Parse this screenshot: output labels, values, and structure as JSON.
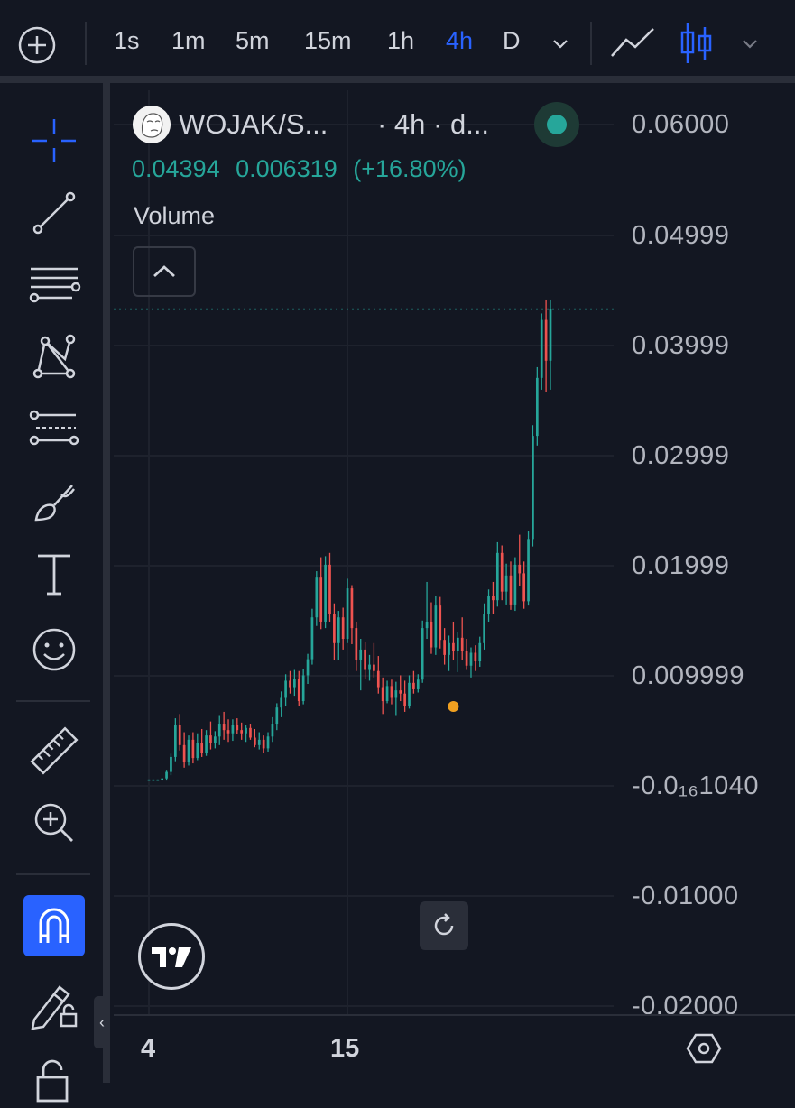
{
  "toolbar": {
    "timeframes": [
      "1s",
      "1m",
      "5m",
      "15m",
      "1h",
      "4h",
      "D"
    ],
    "active_timeframe": "4h"
  },
  "legend": {
    "symbol": "WOJAK/S...",
    "interval_info": "· 4h · d...",
    "last_price": "0.04394",
    "change_abs": "0.006319",
    "change_pct": "(+16.80%)",
    "volume_label": "Volume"
  },
  "price_axis": {
    "labels": [
      "0.06000",
      "0.04999",
      "0.03999",
      "0.02999",
      "0.01999",
      "0.009999",
      "-0.0₁₆1040",
      "-0.01000",
      "-0.02000"
    ]
  },
  "time_axis": {
    "labels": [
      "4",
      "15"
    ]
  },
  "colors": {
    "background": "#131722",
    "up": "#26a69a",
    "down": "#ef5350",
    "accent": "#2962ff",
    "grid": "#1e222d"
  },
  "chart_data": {
    "type": "candlestick",
    "interval": "4h",
    "ylim": [
      -0.021,
      0.0611
    ],
    "ohlc": [
      [
        0.0001,
        0.0001,
        0.0,
        0.0001
      ],
      [
        0.0001,
        0.0001,
        0.0,
        0.0001
      ],
      [
        0.0001,
        0.0001,
        0.0,
        0.0001
      ],
      [
        0.0001,
        0.0002,
        0.0,
        0.0002
      ],
      [
        0.0002,
        0.001,
        0.0,
        0.0008
      ],
      [
        0.0008,
        0.0025,
        0.0005,
        0.0022
      ],
      [
        0.0022,
        0.0058,
        0.0018,
        0.0052
      ],
      [
        0.0052,
        0.0062,
        0.0028,
        0.0033
      ],
      [
        0.0033,
        0.0045,
        0.0012,
        0.0017
      ],
      [
        0.0017,
        0.0042,
        0.0014,
        0.0038
      ],
      [
        0.0038,
        0.0045,
        0.0016,
        0.0021
      ],
      [
        0.0021,
        0.0044,
        0.0019,
        0.0035
      ],
      [
        0.0035,
        0.0048,
        0.0022,
        0.0026
      ],
      [
        0.0026,
        0.0047,
        0.0023,
        0.0042
      ],
      [
        0.0042,
        0.0055,
        0.0029,
        0.0035
      ],
      [
        0.0035,
        0.0046,
        0.003,
        0.0041
      ],
      [
        0.0041,
        0.0061,
        0.0033,
        0.0053
      ],
      [
        0.0053,
        0.0064,
        0.0038,
        0.0047
      ],
      [
        0.0047,
        0.0057,
        0.0036,
        0.0044
      ],
      [
        0.0044,
        0.0057,
        0.0037,
        0.0052
      ],
      [
        0.0052,
        0.0058,
        0.0043,
        0.0047
      ],
      [
        0.0047,
        0.0054,
        0.0038,
        0.0044
      ],
      [
        0.0044,
        0.0052,
        0.0036,
        0.0049
      ],
      [
        0.0049,
        0.0053,
        0.0038,
        0.004
      ],
      [
        0.004,
        0.0048,
        0.0031,
        0.0033
      ],
      [
        0.0033,
        0.0045,
        0.0029,
        0.0038
      ],
      [
        0.0038,
        0.0042,
        0.0026,
        0.003
      ],
      [
        0.003,
        0.0045,
        0.0027,
        0.0041
      ],
      [
        0.0041,
        0.0059,
        0.0036,
        0.0053
      ],
      [
        0.0053,
        0.0072,
        0.0047,
        0.0068
      ],
      [
        0.0068,
        0.0083,
        0.0059,
        0.0077
      ],
      [
        0.0077,
        0.0099,
        0.0069,
        0.0093
      ],
      [
        0.0093,
        0.0102,
        0.0081,
        0.0087
      ],
      [
        0.0087,
        0.0103,
        0.0079,
        0.0095
      ],
      [
        0.0095,
        0.0102,
        0.0069,
        0.0074
      ],
      [
        0.0074,
        0.0104,
        0.0071,
        0.0098
      ],
      [
        0.0098,
        0.0118,
        0.009,
        0.0113
      ],
      [
        0.0113,
        0.016,
        0.0108,
        0.0152
      ],
      [
        0.0152,
        0.0195,
        0.0144,
        0.0189
      ],
      [
        0.0189,
        0.0208,
        0.0141,
        0.0148
      ],
      [
        0.0148,
        0.0209,
        0.0142,
        0.0201
      ],
      [
        0.0201,
        0.0212,
        0.0148,
        0.0155
      ],
      [
        0.0155,
        0.0165,
        0.0112,
        0.0128
      ],
      [
        0.0128,
        0.0158,
        0.0112,
        0.0152
      ],
      [
        0.0152,
        0.0161,
        0.0122,
        0.0132
      ],
      [
        0.0132,
        0.0188,
        0.0128,
        0.0179
      ],
      [
        0.0179,
        0.0182,
        0.0127,
        0.0142
      ],
      [
        0.0142,
        0.0148,
        0.0102,
        0.0112
      ],
      [
        0.0112,
        0.0132,
        0.0084,
        0.0122
      ],
      [
        0.0122,
        0.0129,
        0.0095,
        0.0103
      ],
      [
        0.0103,
        0.0117,
        0.0093,
        0.0108
      ],
      [
        0.0108,
        0.0128,
        0.0096,
        0.0102
      ],
      [
        0.0102,
        0.0116,
        0.0081,
        0.0087
      ],
      [
        0.0087,
        0.0096,
        0.0062,
        0.0074
      ],
      [
        0.0074,
        0.0093,
        0.0072,
        0.0088
      ],
      [
        0.0088,
        0.0094,
        0.0071,
        0.0077
      ],
      [
        0.0077,
        0.0092,
        0.0061,
        0.0084
      ],
      [
        0.0084,
        0.0098,
        0.0074,
        0.0081
      ],
      [
        0.0081,
        0.0093,
        0.0064,
        0.0069
      ],
      [
        0.0069,
        0.0098,
        0.0067,
        0.0091
      ],
      [
        0.0091,
        0.0102,
        0.0081,
        0.0085
      ],
      [
        0.0085,
        0.0099,
        0.0082,
        0.0094
      ],
      [
        0.0094,
        0.0149,
        0.0091,
        0.0142
      ],
      [
        0.0142,
        0.0185,
        0.0132,
        0.0148
      ],
      [
        0.0148,
        0.0166,
        0.0118,
        0.0124
      ],
      [
        0.0124,
        0.0172,
        0.0117,
        0.0163
      ],
      [
        0.0163,
        0.0171,
        0.0123,
        0.0131
      ],
      [
        0.0131,
        0.0142,
        0.0108,
        0.0117
      ],
      [
        0.0117,
        0.0135,
        0.0102,
        0.0128
      ],
      [
        0.0128,
        0.0148,
        0.0112,
        0.0121
      ],
      [
        0.0121,
        0.0138,
        0.0101,
        0.0133
      ],
      [
        0.0133,
        0.0152,
        0.0112,
        0.0121
      ],
      [
        0.0121,
        0.0132,
        0.0103,
        0.0107
      ],
      [
        0.0107,
        0.0124,
        0.0096,
        0.0119
      ],
      [
        0.0119,
        0.0126,
        0.0102,
        0.0111
      ],
      [
        0.0111,
        0.0134,
        0.0106,
        0.0128
      ],
      [
        0.0128,
        0.0165,
        0.0122,
        0.0155
      ],
      [
        0.0155,
        0.0178,
        0.0148,
        0.0172
      ],
      [
        0.0172,
        0.0185,
        0.0155,
        0.0168
      ],
      [
        0.0168,
        0.0222,
        0.0162,
        0.0212
      ],
      [
        0.0212,
        0.0219,
        0.0168,
        0.0176
      ],
      [
        0.0176,
        0.0202,
        0.0164,
        0.0191
      ],
      [
        0.0191,
        0.0204,
        0.0159,
        0.0164
      ],
      [
        0.0164,
        0.0208,
        0.0158,
        0.0201
      ],
      [
        0.0201,
        0.0229,
        0.0181,
        0.0193
      ],
      [
        0.0193,
        0.0204,
        0.016,
        0.0167
      ],
      [
        0.0167,
        0.0232,
        0.0163,
        0.0225
      ],
      [
        0.0225,
        0.0331,
        0.0218,
        0.0321
      ],
      [
        0.0321,
        0.0385,
        0.0312,
        0.0375
      ],
      [
        0.0375,
        0.0435,
        0.0364,
        0.0429
      ],
      [
        0.0429,
        0.0448,
        0.0362,
        0.0391
      ],
      [
        0.0391,
        0.0448,
        0.0364,
        0.0439
      ]
    ]
  }
}
